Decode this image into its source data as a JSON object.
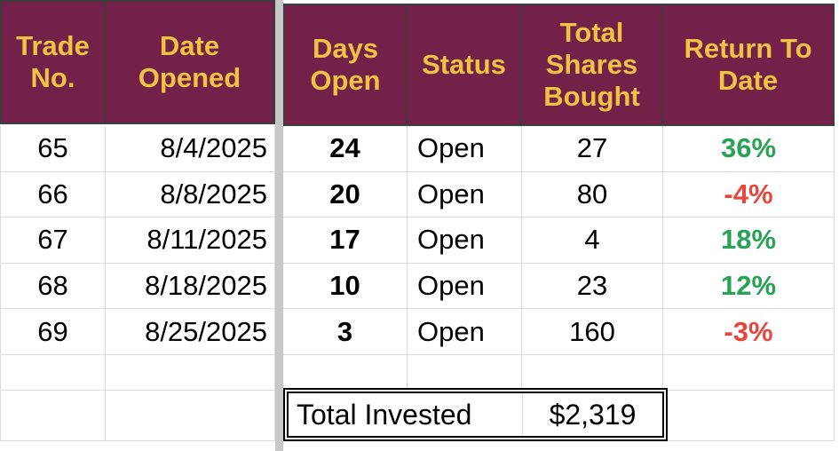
{
  "colors": {
    "header_bg": "#732149",
    "header_text": "#f2c342",
    "header_border": "#3d3d3d",
    "grid_line": "#dadada",
    "pane_divider": "#c8c8c8",
    "positive_return": "#28a255",
    "negative_return": "#e8463c",
    "total_box_border": "#000000"
  },
  "table": {
    "headers": {
      "trade_no": "Trade No.",
      "date_opened": "Date Opened",
      "days_open": "Days Open",
      "status": "Status",
      "total_shares_bought": "Total Shares Bought",
      "return_to_date": "Return To Date"
    },
    "rows": [
      {
        "trade_no": "65",
        "date_opened": "8/4/2025",
        "days_open": "24",
        "status": "Open",
        "shares": "27",
        "return": "36%",
        "return_color": "#28a255"
      },
      {
        "trade_no": "66",
        "date_opened": "8/8/2025",
        "days_open": "20",
        "status": "Open",
        "shares": "80",
        "return": "-4%",
        "return_color": "#e8463c"
      },
      {
        "trade_no": "67",
        "date_opened": "8/11/2025",
        "days_open": "17",
        "status": "Open",
        "shares": "4",
        "return": "18%",
        "return_color": "#28a255"
      },
      {
        "trade_no": "68",
        "date_opened": "8/18/2025",
        "days_open": "10",
        "status": "Open",
        "shares": "23",
        "return": "12%",
        "return_color": "#28a255"
      },
      {
        "trade_no": "69",
        "date_opened": "8/25/2025",
        "days_open": "3",
        "status": "Open",
        "shares": "160",
        "return": "-3%",
        "return_color": "#e8463c"
      }
    ],
    "total": {
      "label": "Total Invested",
      "value": "$2,319"
    }
  }
}
